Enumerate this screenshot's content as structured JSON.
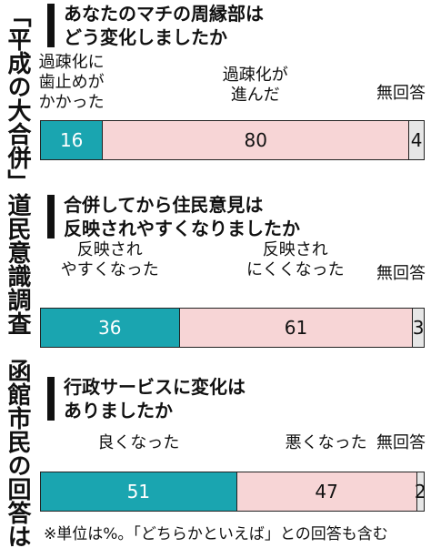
{
  "side_title": "「平成の大合併」道民意識調査　函館市民の回答は",
  "chart_data": [
    {
      "type": "bar",
      "title_lines": [
        "あなたのマチの周縁部は",
        "どう変化しましたか"
      ],
      "categories": [
        [
          "過疎化に",
          "歯止めが",
          "かかった"
        ],
        [
          "過疎化が",
          "進んだ"
        ],
        [
          "無回答"
        ]
      ],
      "values": [
        16,
        80,
        4
      ],
      "colors": [
        "#1aa5b0",
        "#f7d5d6",
        "#e6e6e6"
      ]
    },
    {
      "type": "bar",
      "title_lines": [
        "合併してから住民意見は",
        "反映されやすくなりましたか"
      ],
      "categories": [
        [
          "反映され",
          "やすくなった"
        ],
        [
          "反映され",
          "にくくなった"
        ],
        [
          "無回答"
        ]
      ],
      "values": [
        36,
        61,
        3
      ],
      "colors": [
        "#1aa5b0",
        "#f7d5d6",
        "#e6e6e6"
      ]
    },
    {
      "type": "bar",
      "title_lines": [
        "行政サービスに変化は",
        "ありましたか"
      ],
      "categories": [
        [
          "良くなった"
        ],
        [
          "悪くなった"
        ],
        [
          "無回答"
        ]
      ],
      "values": [
        51,
        47,
        2
      ],
      "colors": [
        "#1aa5b0",
        "#f7d5d6",
        "#e6e6e6"
      ]
    }
  ],
  "footnote": "※単位は%。「どちらかといえば」との回答も含む"
}
